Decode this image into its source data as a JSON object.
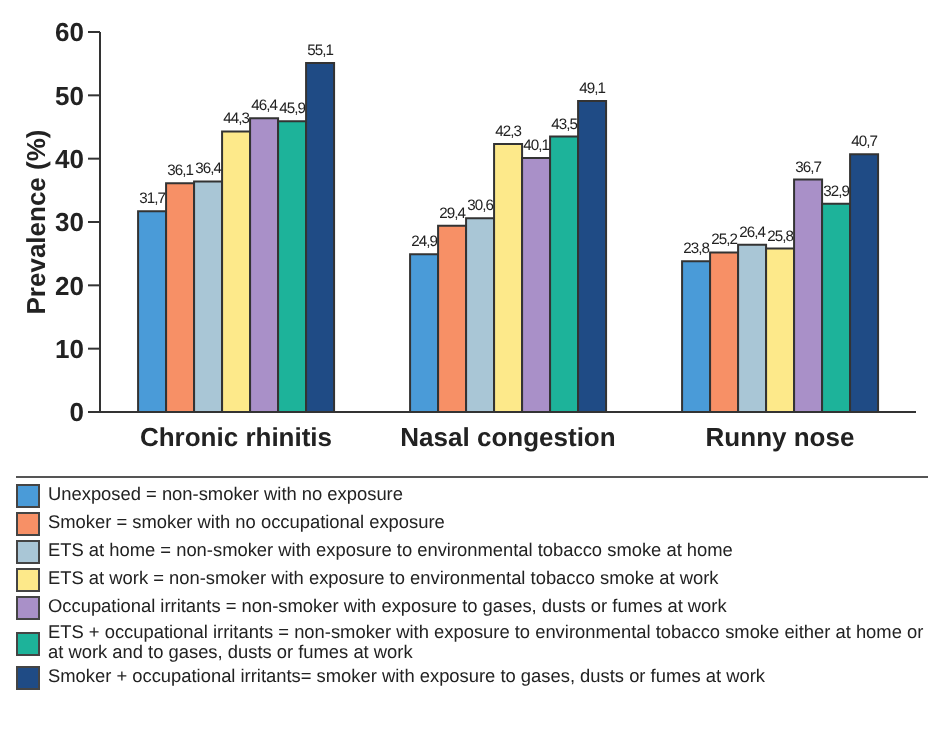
{
  "chart_data": {
    "type": "bar",
    "ylabel": "Prevalence (%)",
    "categories": [
      "Chronic rhinitis",
      "Nasal congestion",
      "Runny nose"
    ],
    "ylim": [
      0,
      60
    ],
    "yticks": [
      0,
      10,
      20,
      30,
      40,
      50,
      60
    ],
    "legend": "bottom",
    "series": [
      {
        "name": "Unexposed = non-smoker with no exposure",
        "color": "#4a9bd8",
        "values": [
          31.7,
          24.9,
          23.8
        ],
        "value_labels": [
          "31,7",
          "24,9",
          "23,8"
        ]
      },
      {
        "name": "Smoker = smoker with no occupational exposure",
        "color": "#f79066",
        "values": [
          36.1,
          29.4,
          25.2
        ],
        "value_labels": [
          "36,1",
          "29,4",
          "25,2"
        ]
      },
      {
        "name": "ETS at home = non-smoker with exposure to environmental tobacco smoke at home",
        "color": "#a9c6d6",
        "values": [
          36.4,
          30.6,
          26.4
        ],
        "value_labels": [
          "36,4",
          "30,6",
          "26,4"
        ]
      },
      {
        "name": "ETS at work = non-smoker with exposure to environmental tobacco smoke at work",
        "color": "#fde98a",
        "values": [
          44.3,
          42.3,
          25.8
        ],
        "value_labels": [
          "44,3",
          "42,3",
          "25,8"
        ]
      },
      {
        "name": "Occupational irritants = non-smoker with exposure to gases, dusts or fumes at work",
        "color": "#a990c8",
        "values": [
          46.4,
          40.1,
          36.7
        ],
        "value_labels": [
          "46,4",
          "40,1",
          "36,7"
        ]
      },
      {
        "name": "ETS + occupational irritants = non-smoker with exposure to environmental tobacco smoke either at home or at work and to gases, dusts or fumes at work",
        "color": "#1db39a",
        "values": [
          45.9,
          43.5,
          32.9
        ],
        "value_labels": [
          "45,9",
          "43,5",
          "32,9"
        ]
      },
      {
        "name": "Smoker + occupational irritants= smoker with exposure to gases, dusts or fumes at work",
        "color": "#1f4b85",
        "values": [
          55.1,
          49.1,
          40.7
        ],
        "value_labels": [
          "55,1",
          "49,1",
          "40,7"
        ]
      }
    ]
  }
}
